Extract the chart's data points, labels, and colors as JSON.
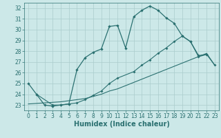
{
  "xlabel": "Humidex (Indice chaleur)",
  "xlim": [
    -0.5,
    23.5
  ],
  "ylim": [
    22.5,
    32.5
  ],
  "xticks": [
    0,
    1,
    2,
    3,
    4,
    5,
    6,
    7,
    8,
    9,
    10,
    11,
    12,
    13,
    14,
    15,
    16,
    17,
    18,
    19,
    20,
    21,
    22,
    23
  ],
  "yticks": [
    23,
    24,
    25,
    26,
    27,
    28,
    29,
    30,
    31,
    32
  ],
  "bg_color": "#cce8e8",
  "grid_color": "#aacccc",
  "line_color": "#2a7070",
  "line1_x": [
    0,
    1,
    2,
    3,
    4,
    5,
    6,
    7,
    8,
    9,
    10,
    11,
    12,
    13,
    14,
    15,
    16,
    17,
    18,
    19,
    20,
    21,
    22
  ],
  "line1_y": [
    25.0,
    24.0,
    23.0,
    22.9,
    23.0,
    23.1,
    26.3,
    27.4,
    27.9,
    28.2,
    30.3,
    30.4,
    28.3,
    31.2,
    31.8,
    32.2,
    31.8,
    31.1,
    30.6,
    29.4,
    28.9,
    27.5,
    27.7
  ],
  "line2_x": [
    0,
    1,
    2,
    3,
    4,
    5,
    6,
    7,
    8,
    9,
    10,
    11,
    12,
    13,
    14,
    15,
    16,
    17,
    18,
    19,
    20,
    21,
    22,
    23
  ],
  "line2_y": [
    23.1,
    23.15,
    23.2,
    23.25,
    23.3,
    23.4,
    23.5,
    23.6,
    23.8,
    24.0,
    24.3,
    24.5,
    24.8,
    25.1,
    25.4,
    25.7,
    26.0,
    26.3,
    26.6,
    26.9,
    27.2,
    27.5,
    27.8,
    26.7
  ],
  "line3_x": [
    1,
    3,
    4,
    5,
    6,
    7,
    8,
    9,
    10,
    11,
    13,
    14,
    15,
    16,
    17,
    18,
    19,
    20,
    21,
    22,
    23
  ],
  "line3_y": [
    24.0,
    23.0,
    23.0,
    23.1,
    23.2,
    23.5,
    23.9,
    24.3,
    25.0,
    25.5,
    26.1,
    26.7,
    27.2,
    27.8,
    28.3,
    28.9,
    29.4,
    28.9,
    27.6,
    27.7,
    26.7
  ],
  "font_size_tick": 5.5,
  "font_size_label": 7
}
